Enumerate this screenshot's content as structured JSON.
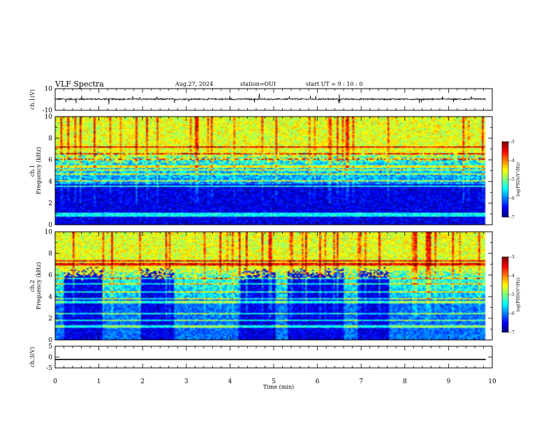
{
  "header": {
    "title": "VLF Spectra",
    "date": "Aug.27, 2024",
    "station": "station=OUI",
    "start": "start  UT  =   9 : 10 : 0"
  },
  "chart_data": [
    {
      "type": "line",
      "name": "ch1-waveform",
      "ylabel": "ch.1(V)",
      "ylim": [
        -10,
        10
      ],
      "yticks": [
        "10",
        "-10"
      ],
      "xlim": [
        0,
        10
      ],
      "baseline": 0.3
    },
    {
      "type": "heatmap",
      "name": "ch1-spectrogram",
      "ylabel": "ch.1\nFrequency  (kHz)",
      "ylim": [
        0,
        10
      ],
      "yticks": [
        "0",
        "2",
        "4",
        "6",
        "8",
        "10"
      ],
      "xlim": [
        0,
        10
      ],
      "data_end_min": 9.85,
      "colorbar": {
        "min": -7,
        "max": -3,
        "ticks": [
          "-3",
          "-4",
          "-5",
          "-6",
          "-7"
        ],
        "label": "log(PSD)(V²/Hz)"
      },
      "quiet_intervals_min": [],
      "description_levels": {
        "low_band_level": -6.6,
        "mid_band_level": -5.5,
        "high_band_level": -4.6
      }
    },
    {
      "type": "heatmap",
      "name": "ch2-spectrogram",
      "ylabel": "ch.2\nFrequency  (kHz)",
      "ylim": [
        0,
        10
      ],
      "yticks": [
        "0",
        "2",
        "4",
        "6",
        "8",
        "10"
      ],
      "xlim": [
        0,
        10
      ],
      "data_end_min": 9.85,
      "colorbar": {
        "min": -7,
        "max": -3,
        "ticks": [
          "-3",
          "-4",
          "-5",
          "-6",
          "-7"
        ],
        "label": "log(PSD)(V²/Hz)"
      },
      "quiet_intervals_min": [
        [
          0.2,
          1.05
        ],
        [
          1.95,
          2.7
        ],
        [
          4.2,
          5.0
        ],
        [
          5.3,
          6.6
        ],
        [
          6.9,
          7.6
        ]
      ],
      "description_levels": {
        "low_band_level": -6.4,
        "mid_band_level": -5.3,
        "high_band_level": -4.6
      }
    },
    {
      "type": "line",
      "name": "ch3-waveform",
      "ylabel": "ch.3(V)",
      "ylim": [
        -5,
        5
      ],
      "yticks": [
        "5",
        "0",
        "-5"
      ],
      "xlim": [
        0,
        10
      ],
      "value": -1.1
    }
  ],
  "xaxis": {
    "label": "Time  (min)",
    "ticks": [
      "0",
      "1",
      "2",
      "3",
      "4",
      "5",
      "6",
      "7",
      "8",
      "9",
      "10"
    ]
  }
}
